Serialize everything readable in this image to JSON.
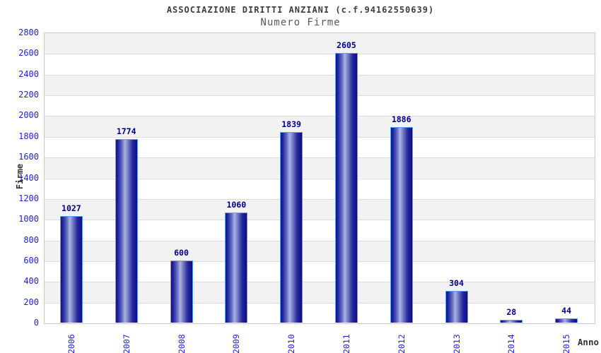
{
  "chart_data": {
    "type": "bar",
    "title": "ASSOCIAZIONE DIRITTI ANZIANI (c.f.94162550639)",
    "subtitle": "Numero Firme",
    "xlabel": "Anno",
    "ylabel": "Firme",
    "categories": [
      "2006",
      "2007",
      "2008",
      "2009",
      "2010",
      "2011",
      "2012",
      "2013",
      "2014",
      "2015"
    ],
    "values": [
      1027,
      1774,
      600,
      1060,
      1839,
      2605,
      1886,
      304,
      28,
      44
    ],
    "yticks": [
      0,
      200,
      400,
      600,
      800,
      1000,
      1200,
      1400,
      1600,
      1800,
      2000,
      2200,
      2400,
      2600,
      2800
    ],
    "ylim": [
      0,
      2800
    ],
    "grid": "horizontal gridlines with alternating gray/white bands",
    "legend": "none",
    "colors": {
      "bar_edge_dark": "#101088",
      "bar_center_light": "#aeb4e0",
      "bar_border": "#5b9eff",
      "value_label": "#00008b",
      "tick_label": "#2222cc",
      "band_gray": "#f2f2f2",
      "band_white": "#ffffff",
      "grid_line": "#dcdcdc",
      "plot_border": "#c9c9c9",
      "title_color": "#3d3d3d",
      "subtitle_color": "#595959",
      "axis_title_color": "#333333"
    }
  }
}
